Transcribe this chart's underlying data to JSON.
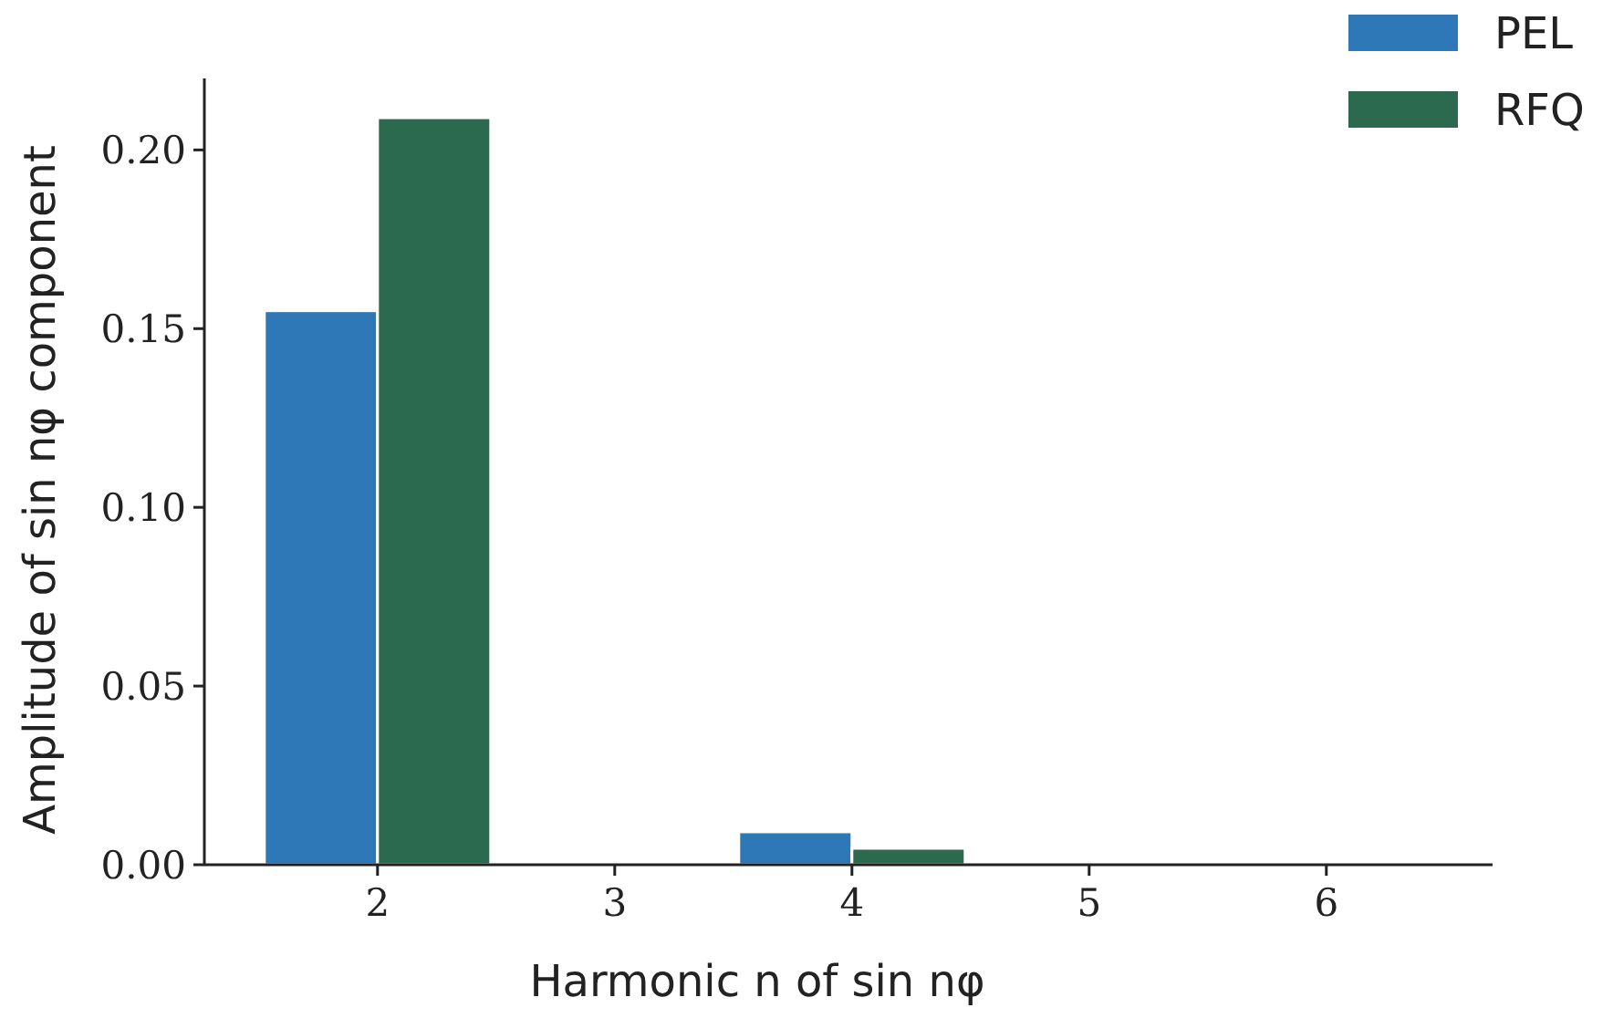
{
  "chart_data": {
    "type": "bar",
    "xlabel": "Harmonic n of sin nφ",
    "ylabel": "Amplitude of sin nφ component",
    "categories": [
      "2",
      "3",
      "4",
      "5",
      "6"
    ],
    "series": [
      {
        "name": "PEL",
        "color": "#2f78b7",
        "values": [
          0.155,
          0,
          0.0092,
          0,
          0
        ]
      },
      {
        "name": "RFQ",
        "color": "#2b6a4f",
        "values": [
          0.209,
          0,
          0.0046,
          0,
          0
        ]
      }
    ],
    "ylim": [
      0,
      0.22
    ],
    "yticks": [
      {
        "value": 0,
        "label": "0.00"
      },
      {
        "value": 0.05,
        "label": "0.05"
      },
      {
        "value": 0.1,
        "label": "0.10"
      },
      {
        "value": 0.15,
        "label": "0.15"
      },
      {
        "value": 0.2,
        "label": "0.20"
      }
    ],
    "grid": false,
    "legend": "top right"
  }
}
